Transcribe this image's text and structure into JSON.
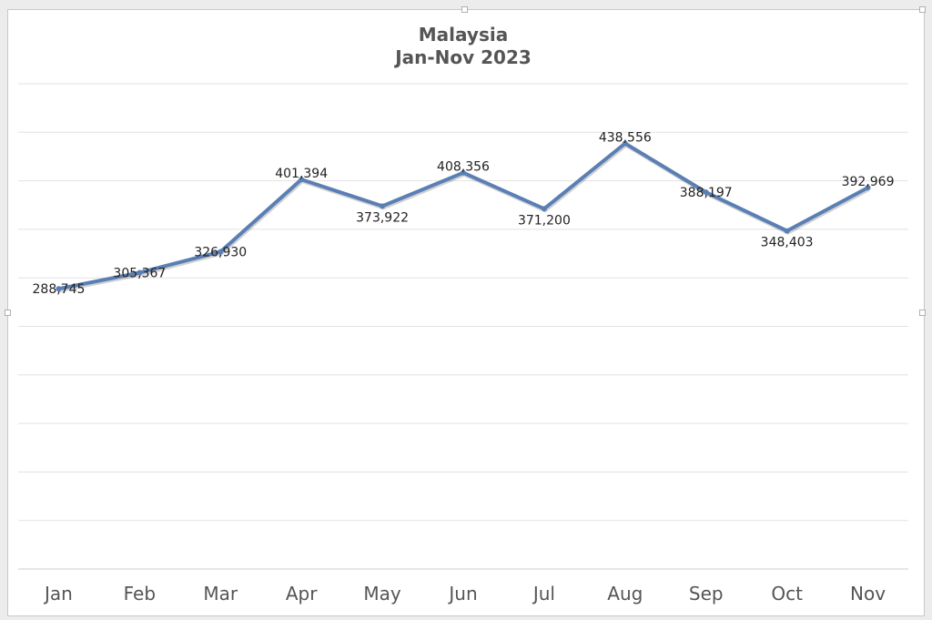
{
  "chart_data": {
    "type": "line",
    "title": "Malaysia",
    "subtitle": "Jan-Nov 2023",
    "categories": [
      "Jan",
      "Feb",
      "Mar",
      "Apr",
      "May",
      "Jun",
      "Jul",
      "Aug",
      "Sep",
      "Oct",
      "Nov"
    ],
    "series": [
      {
        "values": [
          288745,
          305367,
          326930,
          401394,
          373922,
          408356,
          371200,
          438556,
          388197,
          348403,
          392969
        ],
        "data_labels": [
          "288,745",
          "305,367",
          "326,930",
          "401,394",
          "373,922",
          "408,356",
          "371,200",
          "438,556",
          "388,197",
          "348,403",
          "392,969"
        ],
        "color": "#5a7fb5"
      }
    ],
    "ylim": [
      0,
      500000
    ],
    "y_gridlines": 10,
    "grid": true,
    "legend": "none",
    "y_axis_labels_visible": false
  }
}
